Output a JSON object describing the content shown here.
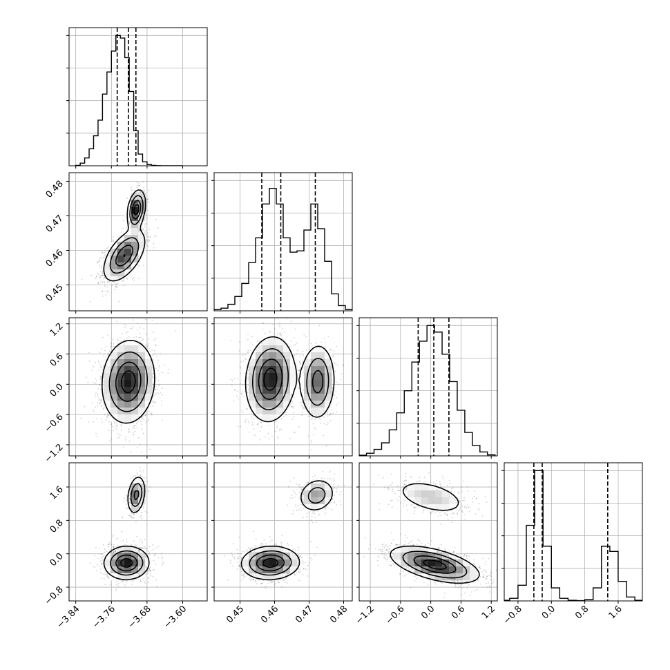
{
  "chart_data": {
    "type": "corner",
    "style": {
      "line_color": "#000000",
      "grid_color": "#b0b0b0",
      "scatter_color": "#000000",
      "frame_color": "#000000"
    },
    "parameters": [
      {
        "range": [
          -3.855,
          -3.545
        ],
        "ticks": [
          -3.84,
          -3.76,
          -3.68,
          -3.6
        ],
        "tick_labels": [
          "−3.84",
          "−3.76",
          "−3.68",
          "−3.60"
        ]
      },
      {
        "range": [
          0.4425,
          0.4825
        ],
        "ticks": [
          0.45,
          0.46,
          0.47,
          0.48
        ],
        "tick_labels": [
          "0.45",
          "0.46",
          "0.47",
          "0.48"
        ]
      },
      {
        "range": [
          -1.42,
          1.32
        ],
        "ticks": [
          -1.2,
          -0.6,
          0.0,
          0.6,
          1.2
        ],
        "tick_labels": [
          "−1.2",
          "−0.6",
          "0.0",
          "0.6",
          "1.2"
        ]
      },
      {
        "range": [
          -1.13,
          2.18
        ],
        "ticks": [
          -0.8,
          0.0,
          0.8,
          1.6
        ],
        "tick_labels": [
          "−0.8",
          "0.0",
          "0.8",
          "1.6"
        ]
      }
    ],
    "histograms": [
      {
        "param": 0,
        "quantiles": [
          -3.747,
          -3.722,
          -3.705
        ],
        "bins": [
          -3.835,
          -3.825,
          -3.815,
          -3.805,
          -3.795,
          -3.785,
          -3.775,
          -3.765,
          -3.755,
          -3.745,
          -3.735,
          -3.725,
          -3.715,
          -3.705,
          -3.695,
          -3.685,
          -3.675,
          -3.665,
          -3.655,
          -3.645,
          -3.635,
          -3.625,
          -3.615,
          -3.605
        ],
        "counts": [
          0.003,
          0.02,
          0.06,
          0.13,
          0.23,
          0.35,
          0.55,
          0.72,
          0.88,
          1.0,
          0.98,
          0.83,
          0.57,
          0.27,
          0.09,
          0.03,
          0.009,
          0.003,
          0.001,
          0.0005,
          0.0002,
          0.0001,
          0,
          0
        ]
      },
      {
        "param": 1,
        "quantiles": [
          0.4563,
          0.4618,
          0.4718
        ],
        "bins": [
          0.4435,
          0.4455,
          0.4475,
          0.4495,
          0.4515,
          0.4535,
          0.4555,
          0.4575,
          0.4595,
          0.4615,
          0.4635,
          0.4655,
          0.4675,
          0.4695,
          0.4715,
          0.4735,
          0.4755,
          0.4775,
          0.4795,
          0.4815
        ],
        "counts": [
          0.01,
          0.02,
          0.05,
          0.11,
          0.21,
          0.37,
          0.56,
          0.82,
          0.94,
          0.82,
          0.56,
          0.45,
          0.46,
          0.62,
          0.82,
          0.63,
          0.38,
          0.13,
          0.04,
          0.01
        ]
      },
      {
        "param": 2,
        "quantiles": [
          -0.25,
          0.06,
          0.36
        ],
        "bins": [
          -1.35,
          -1.2,
          -1.05,
          -0.9,
          -0.75,
          -0.6,
          -0.45,
          -0.3,
          -0.15,
          0.0,
          0.15,
          0.3,
          0.45,
          0.6,
          0.75,
          0.9,
          1.05,
          1.2
        ],
        "counts": [
          0.005,
          0.02,
          0.05,
          0.1,
          0.2,
          0.33,
          0.5,
          0.72,
          0.88,
          1.0,
          0.95,
          0.78,
          0.57,
          0.35,
          0.18,
          0.08,
          0.03,
          0.008
        ]
      },
      {
        "param": 3,
        "quantiles": [
          -0.42,
          -0.22,
          1.35
        ],
        "bins": [
          -1.1,
          -0.9,
          -0.7,
          -0.5,
          -0.3,
          -0.1,
          0.1,
          0.3,
          0.5,
          0.7,
          0.9,
          1.1,
          1.3,
          1.5,
          1.7,
          1.9,
          2.1
        ],
        "counts": [
          0.005,
          0.02,
          0.12,
          0.58,
          1.0,
          0.42,
          0.1,
          0.02,
          0.005,
          0.002,
          0.01,
          0.1,
          0.42,
          0.38,
          0.15,
          0.03,
          0.005
        ]
      }
    ],
    "pairs": [
      {
        "x": 0,
        "y": 1,
        "clusters": [
          {
            "cx": -3.731,
            "cy": 0.4585,
            "sx": 0.0225,
            "sy": 0.0036,
            "rho": 0.55,
            "weight": 0.7,
            "points": 1350
          },
          {
            "cx": -3.704,
            "cy": 0.4718,
            "sx": 0.0095,
            "sy": 0.0027,
            "rho": 0.3,
            "weight": 0.3,
            "points": 600
          }
        ]
      },
      {
        "x": 0,
        "y": 2,
        "clusters": [
          {
            "cx": -3.722,
            "cy": 0.05,
            "sx": 0.028,
            "sy": 0.39,
            "rho": 0.08,
            "weight": 1.0,
            "points": 1900
          }
        ]
      },
      {
        "x": 1,
        "y": 2,
        "clusters": [
          {
            "cx": 0.4588,
            "cy": 0.1,
            "sx": 0.0034,
            "sy": 0.4,
            "rho": 0.1,
            "weight": 0.68,
            "points": 1300
          },
          {
            "cx": 0.4725,
            "cy": 0.05,
            "sx": 0.0024,
            "sy": 0.36,
            "rho": 0.05,
            "weight": 0.32,
            "points": 620
          }
        ]
      },
      {
        "x": 0,
        "y": 3,
        "clusters": [
          {
            "cx": -3.726,
            "cy": -0.22,
            "sx": 0.024,
            "sy": 0.19,
            "rho": 0.02,
            "weight": 0.76,
            "points": 1450
          },
          {
            "cx": -3.704,
            "cy": 1.41,
            "sx": 0.0095,
            "sy": 0.22,
            "rho": 0.25,
            "weight": 0.24,
            "points": 480
          }
        ]
      },
      {
        "x": 1,
        "y": 3,
        "clusters": [
          {
            "cx": 0.4588,
            "cy": -0.22,
            "sx": 0.004,
            "sy": 0.19,
            "rho": 0.05,
            "weight": 0.75,
            "points": 1450
          },
          {
            "cx": 0.4722,
            "cy": 1.4,
            "sx": 0.0026,
            "sy": 0.2,
            "rho": 0.15,
            "weight": 0.25,
            "points": 480
          }
        ]
      },
      {
        "x": 2,
        "y": 3,
        "clusters": [
          {
            "cx": 0.08,
            "cy": -0.26,
            "sx": 0.42,
            "sy": 0.21,
            "rho": -0.55,
            "weight": 0.76,
            "points": 1450
          },
          {
            "cx": 0.0,
            "cy": 1.36,
            "sx": 0.38,
            "sy": 0.22,
            "rho": -0.45,
            "weight": 0.24,
            "points": 480
          }
        ]
      }
    ]
  }
}
